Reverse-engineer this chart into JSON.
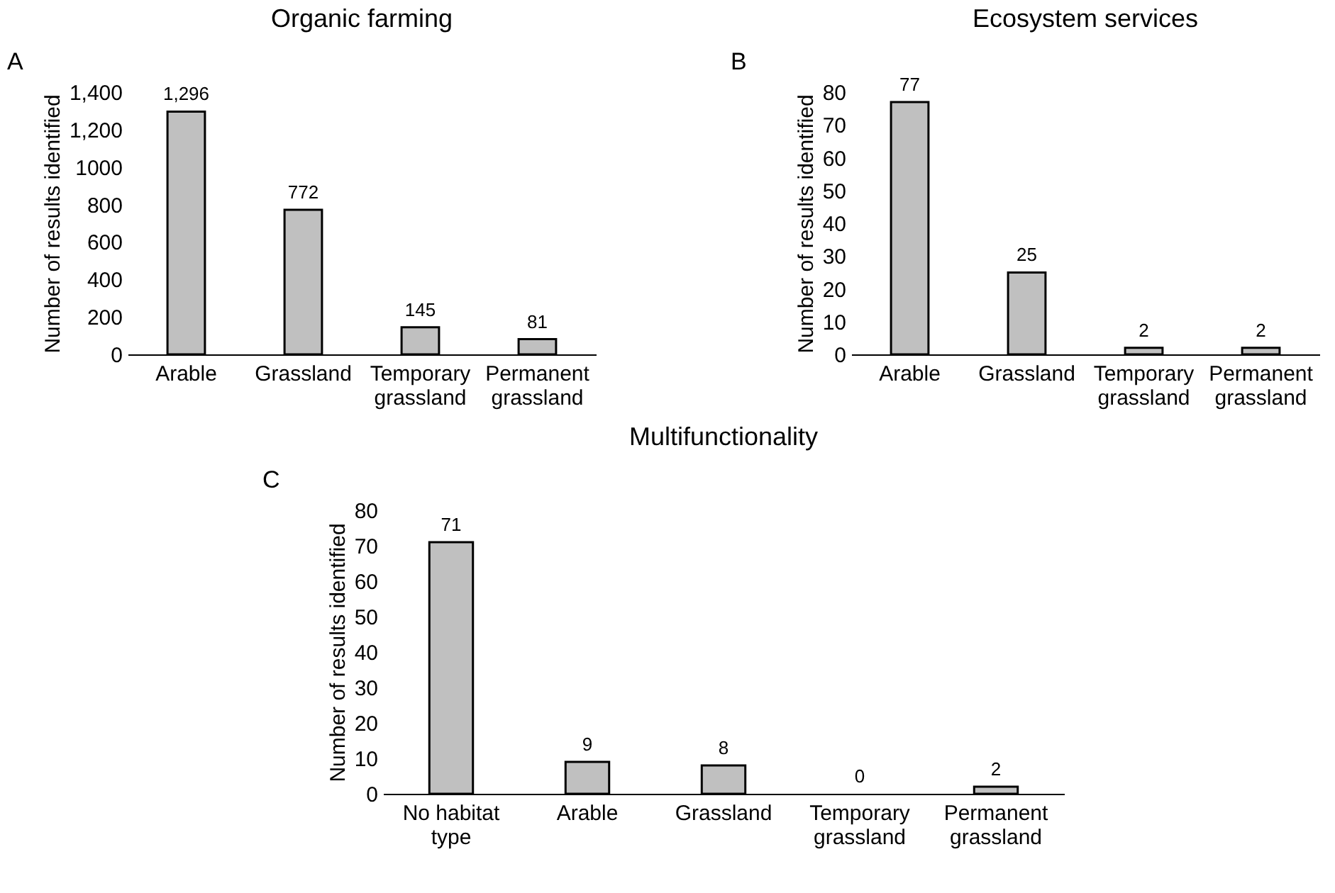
{
  "chart_data": [
    {
      "type": "bar",
      "title": "Organic farming",
      "ylabel": "Number of results identified",
      "annotations": [
        "A"
      ],
      "categories": [
        "Arable",
        "Grassland",
        "Temporary\ngrassland",
        "Permanent\ngrassland"
      ],
      "values": [
        1296,
        772,
        145,
        81
      ],
      "value_labels": [
        "1,296",
        "772",
        "145",
        "81"
      ],
      "color": "#c0c0c0",
      "ylim": [
        0,
        1400
      ],
      "yticks": [
        0,
        200,
        400,
        600,
        800,
        1000,
        {
          "value": 1200,
          "label": "1,200"
        },
        {
          "value": 1400,
          "label": "1,400"
        }
      ],
      "grid": false
    },
    {
      "type": "bar",
      "title": "Ecosystem services",
      "ylabel": "Number of results identified",
      "annotations": [
        "B"
      ],
      "categories": [
        "Arable",
        "Grassland",
        "Temporary\ngrassland",
        "Permanent\ngrassland"
      ],
      "values": [
        77,
        25,
        2,
        2
      ],
      "data_labels": true,
      "color": "#c0c0c0",
      "ylim": [
        0,
        80
      ],
      "yticks": [
        0,
        10,
        20,
        30,
        40,
        50,
        60,
        70,
        80
      ],
      "grid": false
    },
    {
      "type": "bar",
      "title": "Multifunctionality",
      "ylabel": "Number of results identified",
      "annotations": [
        "C"
      ],
      "categories": [
        "No habitat\ntype",
        "Arable",
        "Grassland",
        "Temporary\ngrassland",
        "Permanent\ngrassland"
      ],
      "values": [
        71,
        9,
        8,
        0,
        2
      ],
      "data_labels": true,
      "color": "#c0c0c0",
      "ylim": [
        0,
        80
      ],
      "yticks": [
        0,
        10,
        20,
        30,
        40,
        50,
        60,
        70,
        80
      ],
      "grid": false
    }
  ]
}
